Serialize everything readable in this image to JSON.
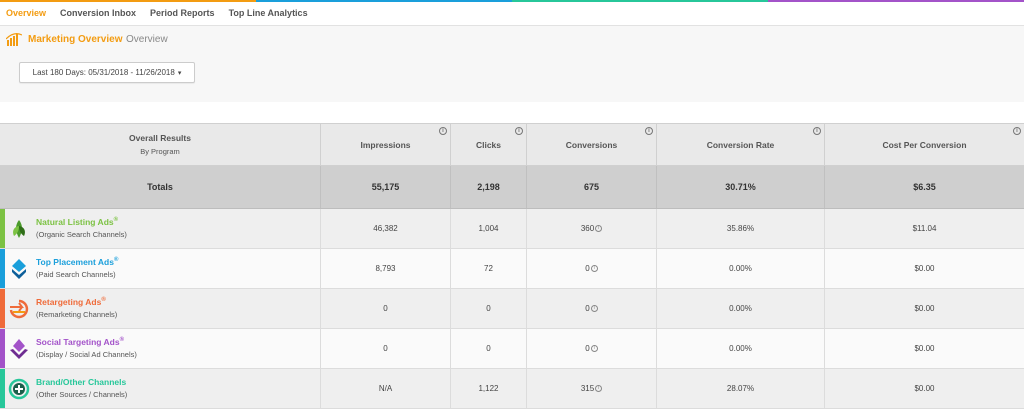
{
  "nav": {
    "tabs": [
      {
        "label": "Overview",
        "active": true
      },
      {
        "label": "Conversion Inbox",
        "active": false
      },
      {
        "label": "Period Reports",
        "active": false
      },
      {
        "label": "Top Line Analytics",
        "active": false
      }
    ]
  },
  "header": {
    "title": "Marketing Overview",
    "breadcrumb": "Overview",
    "date_range": "Last 180 Days: 05/31/2018 - 11/26/2018"
  },
  "table": {
    "columns": {
      "program_line1": "Overall Results",
      "program_line2": "By Program",
      "impressions": "Impressions",
      "clicks": "Clicks",
      "conversions": "Conversions",
      "conversion_rate": "Conversion Rate",
      "cost_per_conversion": "Cost Per Conversion"
    },
    "info_glyph": "i",
    "totals": {
      "label": "Totals",
      "impressions": "55,175",
      "clicks": "2,198",
      "conversions": "675",
      "conversion_rate": "30.71%",
      "cost_per_conversion": "$6.35"
    },
    "rows": [
      {
        "name": "Natural Listing Ads",
        "sup": "®",
        "desc": "(Organic Search Channels)",
        "color": "#7cc243",
        "icon": "leaf-icon",
        "impressions": "46,382",
        "clicks": "1,004",
        "conversions": "360",
        "conversion_rate": "35.86%",
        "cost_per_conversion": "$11.04"
      },
      {
        "name": "Top Placement Ads",
        "sup": "®",
        "desc": "(Paid Search Channels)",
        "color": "#1a9fdb",
        "icon": "diamond-arrow-icon",
        "impressions": "8,793",
        "clicks": "72",
        "conversions": "0",
        "conversion_rate": "0.00%",
        "cost_per_conversion": "$0.00"
      },
      {
        "name": "Retargeting Ads",
        "sup": "®",
        "desc": "(Remarketing Channels)",
        "color": "#ef6b3a",
        "icon": "retarget-arrow-icon",
        "impressions": "0",
        "clicks": "0",
        "conversions": "0",
        "conversion_rate": "0.00%",
        "cost_per_conversion": "$0.00"
      },
      {
        "name": "Social Targeting Ads",
        "sup": "®",
        "desc": "(Display / Social Ad Channels)",
        "color": "#a353c9",
        "icon": "social-diamond-icon",
        "impressions": "0",
        "clicks": "0",
        "conversions": "0",
        "conversion_rate": "0.00%",
        "cost_per_conversion": "$0.00"
      },
      {
        "name": "Brand/Other Channels",
        "sup": "",
        "desc": "(Other Sources / Channels)",
        "color": "#27c79a",
        "icon": "plus-circle-icon",
        "impressions": "N/A",
        "clicks": "1,122",
        "conversions": "315",
        "conversion_rate": "28.07%",
        "cost_per_conversion": "$0.00"
      }
    ]
  },
  "colors": {
    "accent": "#f39c12"
  }
}
